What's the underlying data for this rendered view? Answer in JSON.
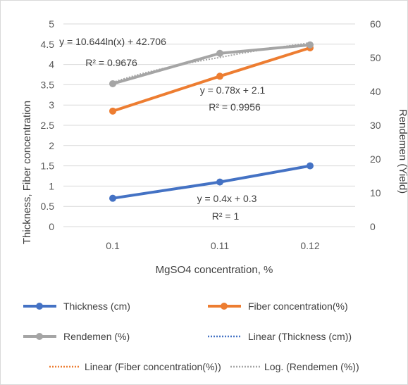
{
  "chart_data": {
    "type": "line",
    "x_categories": [
      "0.1",
      "0.11",
      "0.12"
    ],
    "xlabel": "MgSO4 concentration, %",
    "ylabel_left": "Thickness, Fiber concentration",
    "ylabel_right": "Rendemen  (Yield)",
    "ylim_left": [
      0,
      5
    ],
    "yticks_left": [
      "0",
      "0.5",
      "1",
      "1.5",
      "2",
      "2.5",
      "3",
      "3.5",
      "4",
      "4.5",
      "5"
    ],
    "ylim_right": [
      0,
      60
    ],
    "yticks_right": [
      "0",
      "10",
      "20",
      "30",
      "40",
      "50",
      "60"
    ],
    "grid": "horizontal",
    "legend_position": "bottom",
    "series": [
      {
        "name": "Thickness (cm)",
        "axis": "left",
        "values": [
          0.7,
          1.1,
          1.5
        ],
        "color": "#4472c4"
      },
      {
        "name": "Fiber concentration(%)",
        "axis": "left",
        "values": [
          2.85,
          3.71,
          4.41
        ],
        "color": "#ed7d31"
      },
      {
        "name": "Rendemen (%)",
        "axis": "right",
        "values": [
          42.3,
          51.3,
          53.8
        ],
        "color": "#a5a5a5"
      }
    ],
    "trendlines": [
      {
        "name": "Linear (Thickness (cm))",
        "type": "linear",
        "color": "#4472c4"
      },
      {
        "name": "Linear (Fiber concentration(%))",
        "type": "linear",
        "color": "#ed7d31"
      },
      {
        "name": "Log. (Rendemen (%))",
        "type": "log",
        "color": "#a5a5a5"
      }
    ],
    "annotations": [
      {
        "eq": "y = 10.644ln(x) + 42.706",
        "r2": "R² = 0.9676"
      },
      {
        "eq": "y = 0.78x + 2.1",
        "r2": "R² = 0.9956"
      },
      {
        "eq": "y = 0.4x + 0.3",
        "r2": "R² = 1"
      }
    ]
  }
}
